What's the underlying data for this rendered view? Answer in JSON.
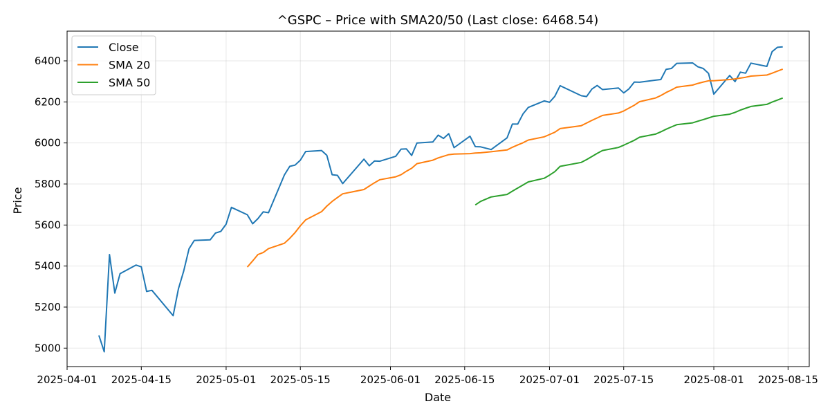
{
  "chart_data": {
    "type": "line",
    "title": "^GSPC – Price with SMA20/50 (Last close: 6468.54)",
    "xlabel": "Date",
    "ylabel": "Price",
    "xlim": [
      "2025-04-01",
      "2025-08-19"
    ],
    "ylim": [
      4910,
      6545
    ],
    "x_ticks": [
      "2025-04-01",
      "2025-04-15",
      "2025-05-01",
      "2025-05-15",
      "2025-06-01",
      "2025-06-15",
      "2025-07-01",
      "2025-07-15",
      "2025-08-01",
      "2025-08-15"
    ],
    "y_ticks": [
      5000,
      5200,
      5400,
      5600,
      5800,
      6000,
      6200,
      6400
    ],
    "grid": true,
    "legend": "top-left",
    "series": [
      {
        "name": "Close",
        "color": "#1f77b4",
        "points": [
          [
            "2025-04-07",
            5062
          ],
          [
            "2025-04-08",
            4982
          ],
          [
            "2025-04-09",
            5456
          ],
          [
            "2025-04-10",
            5268
          ],
          [
            "2025-04-11",
            5363
          ],
          [
            "2025-04-14",
            5405
          ],
          [
            "2025-04-15",
            5396
          ],
          [
            "2025-04-16",
            5276
          ],
          [
            "2025-04-17",
            5282
          ],
          [
            "2025-04-21",
            5158
          ],
          [
            "2025-04-22",
            5288
          ],
          [
            "2025-04-23",
            5376
          ],
          [
            "2025-04-24",
            5484
          ],
          [
            "2025-04-25",
            5525
          ],
          [
            "2025-04-28",
            5528
          ],
          [
            "2025-04-29",
            5561
          ],
          [
            "2025-04-30",
            5569
          ],
          [
            "2025-05-01",
            5604
          ],
          [
            "2025-05-02",
            5686
          ],
          [
            "2025-05-05",
            5650
          ],
          [
            "2025-05-06",
            5606
          ],
          [
            "2025-05-07",
            5631
          ],
          [
            "2025-05-08",
            5664
          ],
          [
            "2025-05-09",
            5660
          ],
          [
            "2025-05-12",
            5844
          ],
          [
            "2025-05-13",
            5886
          ],
          [
            "2025-05-14",
            5892
          ],
          [
            "2025-05-15",
            5916
          ],
          [
            "2025-05-16",
            5958
          ],
          [
            "2025-05-19",
            5963
          ],
          [
            "2025-05-20",
            5940
          ],
          [
            "2025-05-21",
            5845
          ],
          [
            "2025-05-22",
            5842
          ],
          [
            "2025-05-23",
            5802
          ],
          [
            "2025-05-27",
            5921
          ],
          [
            "2025-05-28",
            5889
          ],
          [
            "2025-05-29",
            5912
          ],
          [
            "2025-05-30",
            5911
          ],
          [
            "2025-06-02",
            5935
          ],
          [
            "2025-06-03",
            5970
          ],
          [
            "2025-06-04",
            5971
          ],
          [
            "2025-06-05",
            5939
          ],
          [
            "2025-06-06",
            6000
          ],
          [
            "2025-06-09",
            6005
          ],
          [
            "2025-06-10",
            6038
          ],
          [
            "2025-06-11",
            6022
          ],
          [
            "2025-06-12",
            6045
          ],
          [
            "2025-06-13",
            5977
          ],
          [
            "2025-06-16",
            6033
          ],
          [
            "2025-06-17",
            5982
          ],
          [
            "2025-06-18",
            5981
          ],
          [
            "2025-06-20",
            5968
          ],
          [
            "2025-06-23",
            6025
          ],
          [
            "2025-06-24",
            6092
          ],
          [
            "2025-06-25",
            6092
          ],
          [
            "2025-06-26",
            6141
          ],
          [
            "2025-06-27",
            6173
          ],
          [
            "2025-06-30",
            6205
          ],
          [
            "2025-07-01",
            6198
          ],
          [
            "2025-07-02",
            6227
          ],
          [
            "2025-07-03",
            6279
          ],
          [
            "2025-07-07",
            6230
          ],
          [
            "2025-07-08",
            6226
          ],
          [
            "2025-07-09",
            6263
          ],
          [
            "2025-07-10",
            6280
          ],
          [
            "2025-07-11",
            6260
          ],
          [
            "2025-07-14",
            6268
          ],
          [
            "2025-07-15",
            6244
          ],
          [
            "2025-07-16",
            6264
          ],
          [
            "2025-07-17",
            6297
          ],
          [
            "2025-07-18",
            6296
          ],
          [
            "2025-07-21",
            6306
          ],
          [
            "2025-07-22",
            6309
          ],
          [
            "2025-07-23",
            6359
          ],
          [
            "2025-07-24",
            6363
          ],
          [
            "2025-07-25",
            6388
          ],
          [
            "2025-07-28",
            6390
          ],
          [
            "2025-07-29",
            6371
          ],
          [
            "2025-07-30",
            6363
          ],
          [
            "2025-07-31",
            6339
          ],
          [
            "2025-08-01",
            6238
          ],
          [
            "2025-08-04",
            6329
          ],
          [
            "2025-08-05",
            6299
          ],
          [
            "2025-08-06",
            6345
          ],
          [
            "2025-08-07",
            6340
          ],
          [
            "2025-08-08",
            6389
          ],
          [
            "2025-08-11",
            6373
          ],
          [
            "2025-08-12",
            6445
          ],
          [
            "2025-08-13",
            6466
          ],
          [
            "2025-08-14",
            6468
          ]
        ]
      },
      {
        "name": "SMA 20",
        "color": "#ff7f0e",
        "points": [
          [
            "2025-05-05",
            5395
          ],
          [
            "2025-05-06",
            5425
          ],
          [
            "2025-05-07",
            5456
          ],
          [
            "2025-05-08",
            5466
          ],
          [
            "2025-05-09",
            5485
          ],
          [
            "2025-05-12",
            5511
          ],
          [
            "2025-05-13",
            5535
          ],
          [
            "2025-05-14",
            5563
          ],
          [
            "2025-05-15",
            5596
          ],
          [
            "2025-05-16",
            5625
          ],
          [
            "2025-05-19",
            5665
          ],
          [
            "2025-05-20",
            5692
          ],
          [
            "2025-05-21",
            5715
          ],
          [
            "2025-05-22",
            5734
          ],
          [
            "2025-05-23",
            5752
          ],
          [
            "2025-05-27",
            5773
          ],
          [
            "2025-05-28",
            5790
          ],
          [
            "2025-05-29",
            5806
          ],
          [
            "2025-05-30",
            5821
          ],
          [
            "2025-06-02",
            5835
          ],
          [
            "2025-06-03",
            5845
          ],
          [
            "2025-06-04",
            5862
          ],
          [
            "2025-06-05",
            5877
          ],
          [
            "2025-06-06",
            5899
          ],
          [
            "2025-06-09",
            5916
          ],
          [
            "2025-06-10",
            5927
          ],
          [
            "2025-06-11",
            5935
          ],
          [
            "2025-06-12",
            5943
          ],
          [
            "2025-06-13",
            5946
          ],
          [
            "2025-06-16",
            5948
          ],
          [
            "2025-06-17",
            5951
          ],
          [
            "2025-06-18",
            5952
          ],
          [
            "2025-06-20",
            5957
          ],
          [
            "2025-06-23",
            5966
          ],
          [
            "2025-06-24",
            5979
          ],
          [
            "2025-06-25",
            5990
          ],
          [
            "2025-06-26",
            6001
          ],
          [
            "2025-06-27",
            6014
          ],
          [
            "2025-06-30",
            6030
          ],
          [
            "2025-07-01",
            6041
          ],
          [
            "2025-07-02",
            6052
          ],
          [
            "2025-07-03",
            6070
          ],
          [
            "2025-07-07",
            6084
          ],
          [
            "2025-07-08",
            6097
          ],
          [
            "2025-07-09",
            6110
          ],
          [
            "2025-07-10",
            6122
          ],
          [
            "2025-07-11",
            6134
          ],
          [
            "2025-07-14",
            6146
          ],
          [
            "2025-07-15",
            6156
          ],
          [
            "2025-07-16",
            6170
          ],
          [
            "2025-07-17",
            6184
          ],
          [
            "2025-07-18",
            6201
          ],
          [
            "2025-07-21",
            6219
          ],
          [
            "2025-07-22",
            6231
          ],
          [
            "2025-07-23",
            6246
          ],
          [
            "2025-07-24",
            6258
          ],
          [
            "2025-07-25",
            6272
          ],
          [
            "2025-07-28",
            6282
          ],
          [
            "2025-07-29",
            6290
          ],
          [
            "2025-07-30",
            6297
          ],
          [
            "2025-07-31",
            6303
          ],
          [
            "2025-08-01",
            6303
          ],
          [
            "2025-08-04",
            6309
          ],
          [
            "2025-08-05",
            6312
          ],
          [
            "2025-08-06",
            6316
          ],
          [
            "2025-08-07",
            6320
          ],
          [
            "2025-08-08",
            6326
          ],
          [
            "2025-08-11",
            6331
          ],
          [
            "2025-08-12",
            6340
          ],
          [
            "2025-08-13",
            6350
          ],
          [
            "2025-08-14",
            6360
          ]
        ]
      },
      {
        "name": "SMA 50",
        "color": "#2ca02c",
        "points": [
          [
            "2025-06-17",
            5698
          ],
          [
            "2025-06-18",
            5715
          ],
          [
            "2025-06-20",
            5737
          ],
          [
            "2025-06-23",
            5749
          ],
          [
            "2025-06-24",
            5765
          ],
          [
            "2025-06-25",
            5780
          ],
          [
            "2025-06-26",
            5795
          ],
          [
            "2025-06-27",
            5810
          ],
          [
            "2025-06-30",
            5828
          ],
          [
            "2025-07-01",
            5843
          ],
          [
            "2025-07-02",
            5860
          ],
          [
            "2025-07-03",
            5886
          ],
          [
            "2025-07-07",
            5905
          ],
          [
            "2025-07-08",
            5919
          ],
          [
            "2025-07-09",
            5934
          ],
          [
            "2025-07-10",
            5949
          ],
          [
            "2025-07-11",
            5963
          ],
          [
            "2025-07-14",
            5978
          ],
          [
            "2025-07-15",
            5989
          ],
          [
            "2025-07-16",
            6001
          ],
          [
            "2025-07-17",
            6013
          ],
          [
            "2025-07-18",
            6028
          ],
          [
            "2025-07-21",
            6043
          ],
          [
            "2025-07-22",
            6054
          ],
          [
            "2025-07-23",
            6067
          ],
          [
            "2025-07-24",
            6078
          ],
          [
            "2025-07-25",
            6089
          ],
          [
            "2025-07-28",
            6098
          ],
          [
            "2025-07-29",
            6106
          ],
          [
            "2025-07-30",
            6114
          ],
          [
            "2025-07-31",
            6122
          ],
          [
            "2025-08-01",
            6130
          ],
          [
            "2025-08-04",
            6140
          ],
          [
            "2025-08-05",
            6149
          ],
          [
            "2025-08-06",
            6160
          ],
          [
            "2025-08-07",
            6169
          ],
          [
            "2025-08-08",
            6178
          ],
          [
            "2025-08-11",
            6188
          ],
          [
            "2025-08-12",
            6199
          ],
          [
            "2025-08-13",
            6209
          ],
          [
            "2025-08-14",
            6219
          ]
        ]
      }
    ]
  }
}
